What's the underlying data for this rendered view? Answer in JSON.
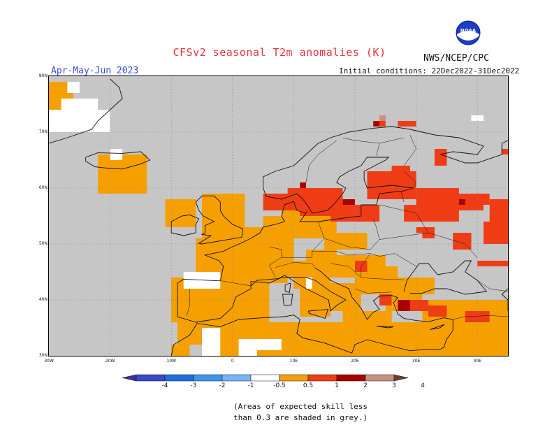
{
  "header": {
    "title": "CFSv2 seasonal T2m anomalies (K)",
    "agency": "NWS/NCEP/CPC",
    "period": "Apr-May-Jun 2023",
    "initial_conditions": "Initial conditions: 22Dec2022-31Dec2022",
    "logo_text": "NOAA"
  },
  "footnote": {
    "line1": "(Areas of expected skill less",
    "line2": "than 0.3 are shaded in grey.)"
  },
  "map": {
    "projection": "lat-lon",
    "lon_range": [
      -30,
      45
    ],
    "lat_range": [
      30,
      80
    ],
    "y_ticks": [
      "80N",
      "70N",
      "60N",
      "50N",
      "40N",
      "30N"
    ],
    "x_ticks": [
      "30W",
      "20W",
      "10W",
      "0",
      "10E",
      "20E",
      "30E",
      "40E"
    ],
    "colors": {
      "grey": "#c6c6c6",
      "white": "#ffffff",
      "c0_5_1": "#f5a000",
      "c1_2": "#f03c14",
      "c2_3": "#aa0000",
      "c3_4": "#c79080"
    },
    "regions": [
      {
        "level": "c0_5_1",
        "boxes": [
          [
            -30,
            -26,
            70,
            79
          ],
          [
            -27,
            -25,
            72,
            76
          ],
          [
            -22,
            -14,
            59,
            66
          ],
          [
            -11,
            -6,
            53,
            58
          ],
          [
            -5,
            2,
            50,
            59
          ],
          [
            -6,
            9,
            43,
            51
          ],
          [
            -4,
            7,
            48,
            53
          ],
          [
            5,
            10,
            44,
            51
          ],
          [
            -10,
            -3,
            39,
            44
          ],
          [
            -10,
            6,
            36,
            44
          ],
          [
            -9,
            -2,
            32,
            36
          ],
          [
            -10,
            -7,
            30,
            32
          ],
          [
            -4,
            4,
            30,
            36
          ],
          [
            -2,
            4,
            36,
            38
          ],
          [
            4,
            45,
            30,
            36
          ],
          [
            10,
            16,
            42,
            47
          ],
          [
            11,
            16,
            37,
            42
          ],
          [
            14,
            21,
            38,
            43
          ],
          [
            18,
            26,
            34,
            38
          ],
          [
            16,
            25,
            44,
            48
          ],
          [
            20,
            27,
            44,
            46
          ],
          [
            15,
            22,
            49,
            52
          ],
          [
            25,
            31,
            38,
            41
          ],
          [
            31,
            45,
            36,
            40
          ],
          [
            5,
            17,
            51,
            55
          ],
          [
            8,
            13,
            54,
            57
          ],
          [
            21,
            23,
            45,
            48
          ],
          [
            12,
            17,
            46,
            49
          ],
          [
            20,
            33,
            41,
            44
          ]
        ]
      },
      {
        "level": "white",
        "boxes": [
          [
            -27,
            -25,
            77,
            79
          ],
          [
            -30,
            -20,
            70,
            74
          ],
          [
            -28,
            -22,
            73,
            76
          ],
          [
            -20,
            -18,
            65,
            67
          ],
          [
            -8,
            -2,
            42,
            45
          ],
          [
            -5,
            -2,
            30,
            35
          ],
          [
            1,
            4,
            30,
            33
          ],
          [
            4,
            8,
            31,
            33
          ],
          [
            12,
            13,
            42,
            44
          ],
          [
            39,
            41,
            72,
            73
          ]
        ]
      },
      {
        "level": "c1_2",
        "boxes": [
          [
            9,
            18,
            56,
            60
          ],
          [
            11,
            16,
            55,
            57
          ],
          [
            5,
            9,
            56,
            59
          ],
          [
            16,
            24,
            54,
            57
          ],
          [
            22,
            30,
            58,
            63
          ],
          [
            26,
            29,
            61,
            64
          ],
          [
            30,
            37,
            54,
            60
          ],
          [
            34,
            41,
            56,
            59
          ],
          [
            42,
            45,
            53,
            58
          ],
          [
            41,
            45,
            50,
            54
          ],
          [
            40,
            45,
            46,
            47
          ],
          [
            29,
            32,
            38,
            40
          ],
          [
            24,
            26,
            39,
            41
          ],
          [
            32,
            35,
            37,
            39
          ],
          [
            38,
            42,
            36,
            38
          ],
          [
            33,
            35,
            64,
            67
          ],
          [
            36,
            39,
            49,
            52
          ],
          [
            28,
            31,
            54,
            57
          ],
          [
            31,
            33,
            51,
            53
          ],
          [
            20,
            22,
            45,
            47
          ],
          [
            23,
            25,
            71,
            72
          ],
          [
            27,
            30,
            71,
            72
          ],
          [
            44,
            45,
            66,
            67
          ],
          [
            40,
            42,
            57,
            59
          ],
          [
            30,
            32,
            52,
            53
          ]
        ]
      },
      {
        "level": "c2_3",
        "boxes": [
          [
            27,
            29,
            38,
            40
          ],
          [
            37,
            38,
            57,
            58
          ],
          [
            18,
            20,
            57,
            58
          ],
          [
            11,
            12,
            60,
            61
          ],
          [
            23,
            24,
            71,
            72
          ]
        ]
      },
      {
        "level": "c3_4",
        "boxes": [
          [
            24,
            25,
            72,
            73
          ]
        ]
      }
    ],
    "colorbar": {
      "labels": [
        "-4",
        "-3",
        "-2",
        "-1",
        "-0.5",
        "0.5",
        "1",
        "2",
        "3",
        "4"
      ],
      "colors": [
        "#3c2da0",
        "#3c46c8",
        "#1e6ee0",
        "#3c96f0",
        "#78b4f8",
        "#ffffff",
        "#f5a000",
        "#f03c14",
        "#aa0000",
        "#c79080",
        "#6e4030"
      ]
    }
  }
}
